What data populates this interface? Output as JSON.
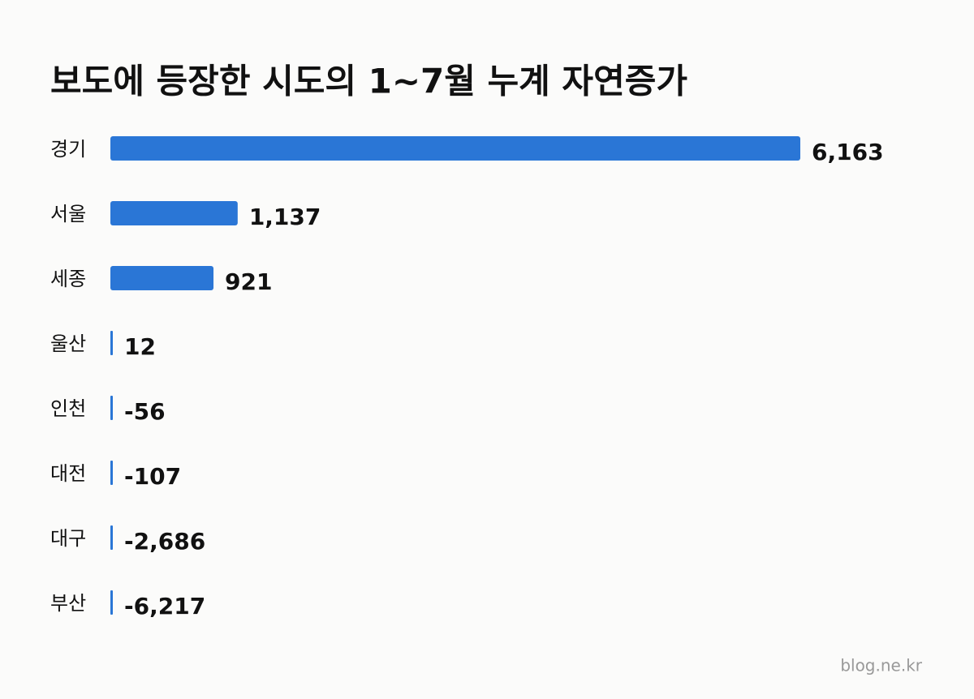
{
  "chart_data": {
    "type": "hbar",
    "title": "보도에 등장한 시도의 1~7월 누계 자연증가",
    "categories": [
      "경기",
      "서울",
      "세종",
      "울산",
      "인천",
      "대전",
      "대구",
      "부산"
    ],
    "values": [
      6163,
      1137,
      921,
      12,
      -56,
      -107,
      -2686,
      -6217
    ],
    "value_labels": [
      "6,163",
      "1,137",
      "921",
      "12",
      "-56",
      "-107",
      "-2,686",
      "-6,217"
    ],
    "color": "#2a76d6",
    "source": "blog.ne.kr"
  }
}
